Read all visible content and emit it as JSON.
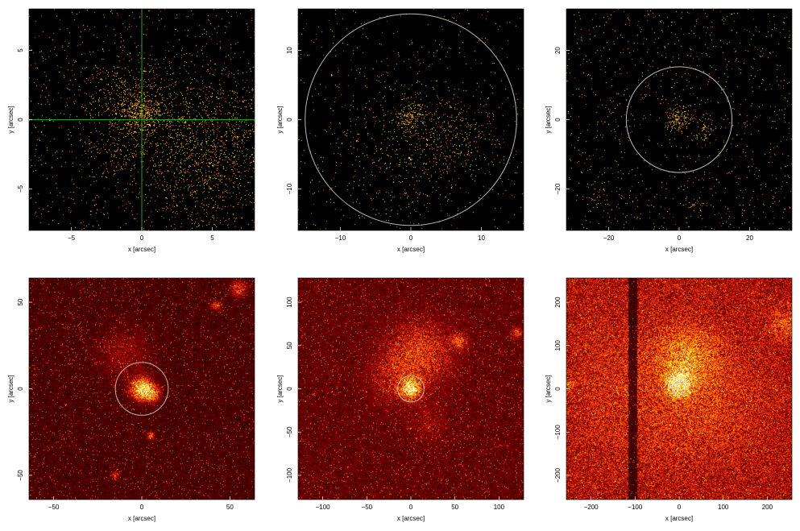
{
  "chart_data": [
    {
      "type": "heatmap",
      "xlabel": "x [arcsec]",
      "ylabel": "y [arcsec]",
      "xlim": [
        -8,
        8
      ],
      "ylim": [
        -8,
        8
      ],
      "xticks": [
        -5,
        0,
        5
      ],
      "yticks": [
        -5,
        0,
        5
      ],
      "overlay": {
        "kind": "crosshair",
        "center": [
          0,
          0
        ],
        "color": "#1fa01f"
      },
      "brightness": 0.1,
      "sources": [
        {
          "x": 0,
          "y": 0.6,
          "sigma": 0.9,
          "amp": 2.2
        },
        {
          "x": -1.5,
          "y": 1.5,
          "sigma": 1.8,
          "amp": 0.5
        },
        {
          "x": -1.8,
          "y": -2.4,
          "sigma": 0.9,
          "amp": 0.5
        },
        {
          "x": 4.5,
          "y": -2.2,
          "sigma": 2.8,
          "amp": 0.9
        }
      ]
    },
    {
      "type": "heatmap",
      "xlabel": "x [arcsec]",
      "ylabel": "y [arcsec]",
      "xlim": [
        -16,
        16
      ],
      "ylim": [
        -16,
        16
      ],
      "xticks": [
        -10,
        0,
        10
      ],
      "yticks": [
        -10,
        0,
        10
      ],
      "overlay": {
        "kind": "circle",
        "center": [
          0,
          0
        ],
        "radius": 15,
        "color": "#b8b8b8"
      },
      "brightness": 0.05,
      "sources": [
        {
          "x": 0,
          "y": 0.5,
          "sigma": 1.2,
          "amp": 2.0
        },
        {
          "x": 6,
          "y": -2.5,
          "sigma": 3.5,
          "amp": 0.5
        },
        {
          "x": -2,
          "y": -4,
          "sigma": 6,
          "amp": 0.25
        }
      ]
    },
    {
      "type": "heatmap",
      "xlabel": "x [arcsec]",
      "ylabel": "y [arcsec]",
      "xlim": [
        -32,
        32
      ],
      "ylim": [
        -32,
        32
      ],
      "xticks": [
        -20,
        0,
        20
      ],
      "yticks": [
        -20,
        0,
        20
      ],
      "overlay": {
        "kind": "circle",
        "center": [
          0,
          0
        ],
        "radius": 15,
        "color": "#b8b8b8"
      },
      "brightness": 0.12,
      "sources": [
        {
          "x": 0,
          "y": 0.5,
          "sigma": 1.8,
          "amp": 2.5
        },
        {
          "x": 7,
          "y": -2.5,
          "sigma": 2.0,
          "amp": 1.2
        },
        {
          "x": -2,
          "y": -2.5,
          "sigma": 1.0,
          "amp": 1.0
        },
        {
          "x": 5,
          "y": -25,
          "sigma": 1.2,
          "amp": 1.2
        },
        {
          "x": -22,
          "y": -22,
          "sigma": 2.0,
          "amp": 0.5
        }
      ]
    },
    {
      "type": "heatmap",
      "xlabel": "x [arcsec]",
      "ylabel": "y [arcsec]",
      "xlim": [
        -64,
        64
      ],
      "ylim": [
        -64,
        64
      ],
      "xticks": [
        -50,
        0,
        50
      ],
      "yticks": [
        -50,
        0,
        50
      ],
      "overlay": {
        "kind": "circle",
        "center": [
          0,
          0
        ],
        "radius": 15,
        "color": "#b8b8b8"
      },
      "brightness": 0.38,
      "sources": [
        {
          "x": 0,
          "y": 0,
          "sigma": 4,
          "amp": 2.2
        },
        {
          "x": 6,
          "y": -3,
          "sigma": 3,
          "amp": 1.2
        },
        {
          "x": -10,
          "y": 20,
          "sigma": 10,
          "amp": 0.35
        },
        {
          "x": 55,
          "y": 58,
          "sigma": 3,
          "amp": 0.9
        },
        {
          "x": 42,
          "y": 48,
          "sigma": 2,
          "amp": 0.7
        },
        {
          "x": 5,
          "y": -27,
          "sigma": 1.5,
          "amp": 1.0
        },
        {
          "x": -15,
          "y": -50,
          "sigma": 1.5,
          "amp": 0.7
        }
      ]
    },
    {
      "type": "heatmap",
      "xlabel": "x [arcsec]",
      "ylabel": "y [arcsec]",
      "xlim": [
        -128,
        128
      ],
      "ylim": [
        -128,
        128
      ],
      "xticks": [
        -100,
        -50,
        0,
        50,
        100
      ],
      "yticks": [
        -100,
        -50,
        0,
        50,
        100
      ],
      "overlay": {
        "kind": "circle",
        "center": [
          0,
          0
        ],
        "radius": 15,
        "color": "#b8b8b8"
      },
      "brightness": 0.5,
      "sources": [
        {
          "x": 0,
          "y": 0,
          "sigma": 7,
          "amp": 2.2
        },
        {
          "x": 10,
          "y": 40,
          "sigma": 25,
          "amp": 0.7
        },
        {
          "x": 55,
          "y": 55,
          "sigma": 6,
          "amp": 0.8
        },
        {
          "x": -20,
          "y": 10,
          "sigma": 20,
          "amp": 0.35
        },
        {
          "x": 120,
          "y": 65,
          "sigma": 4,
          "amp": 0.8
        },
        {
          "x": 20,
          "y": -40,
          "sigma": 15,
          "amp": 0.25
        }
      ]
    },
    {
      "type": "heatmap",
      "xlabel": "x [arcsec]",
      "ylabel": "y [arcsec]",
      "xlim": [
        -256,
        256
      ],
      "ylim": [
        -256,
        256
      ],
      "xticks": [
        -200,
        -100,
        0,
        100,
        200
      ],
      "yticks": [
        -200,
        -100,
        0,
        100,
        200
      ],
      "overlay": {
        "kind": "circle",
        "center": [
          0,
          0
        ],
        "radius": 15,
        "color": "#b8b8b8"
      },
      "brightness": 0.85,
      "dark_stripe": {
        "x_from": -115,
        "x_to": -95
      },
      "sources": [
        {
          "x": 0,
          "y": 10,
          "sigma": 18,
          "amp": 2.2
        },
        {
          "x": 20,
          "y": 70,
          "sigma": 45,
          "amp": 0.8
        },
        {
          "x": -100,
          "y": 0,
          "sigma": 120,
          "amp": 0.25
        },
        {
          "x": 80,
          "y": -40,
          "sigma": 90,
          "amp": 0.25
        },
        {
          "x": 240,
          "y": 150,
          "sigma": 25,
          "amp": 0.5
        },
        {
          "x": -250,
          "y": 10,
          "sigma": 8,
          "amp": 0.6
        }
      ]
    }
  ]
}
